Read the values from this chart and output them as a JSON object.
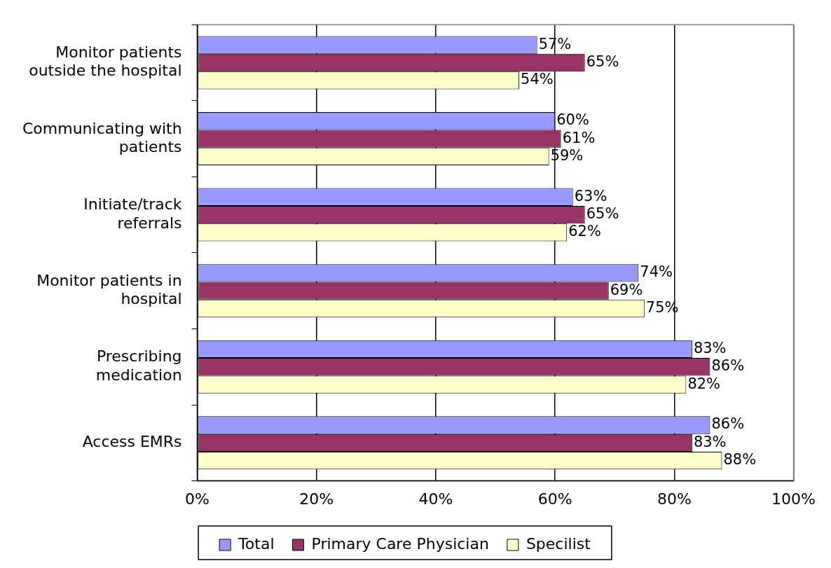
{
  "chart_data": {
    "type": "bar",
    "orientation": "horizontal",
    "categories": [
      "Monitor patients outside the hospital",
      "Communicating with patients",
      "Initiate/track referrals",
      "Monitor patients in hospital",
      "Prescribing medication",
      "Access EMRs"
    ],
    "series": [
      {
        "name": "Total",
        "color": "#9999ff",
        "values": [
          57,
          60,
          63,
          74,
          83,
          86
        ],
        "value_labels": [
          "57%",
          "60%",
          "63%",
          "74%",
          "83%",
          "86%"
        ]
      },
      {
        "name": "Primary Care Physician",
        "color": "#993366",
        "values": [
          65,
          61,
          65,
          69,
          86,
          83
        ],
        "value_labels": [
          "65%",
          "61%",
          "65%",
          "69%",
          "86%",
          "83%"
        ]
      },
      {
        "name": "Specilist",
        "color": "#ffffcc",
        "values": [
          54,
          59,
          62,
          75,
          82,
          88
        ],
        "value_labels": [
          "54%",
          "59%",
          "62%",
          "75%",
          "82%",
          "88%"
        ]
      }
    ],
    "xlim": [
      0,
      100
    ],
    "xticks": [
      {
        "value": 0,
        "label": "0%"
      },
      {
        "value": 20,
        "label": "20%"
      },
      {
        "value": 40,
        "label": "40%"
      },
      {
        "value": 60,
        "label": "60%"
      },
      {
        "value": 80,
        "label": "80%"
      },
      {
        "value": 100,
        "label": "100%"
      }
    ],
    "grid": "x",
    "legend": "bottom"
  }
}
